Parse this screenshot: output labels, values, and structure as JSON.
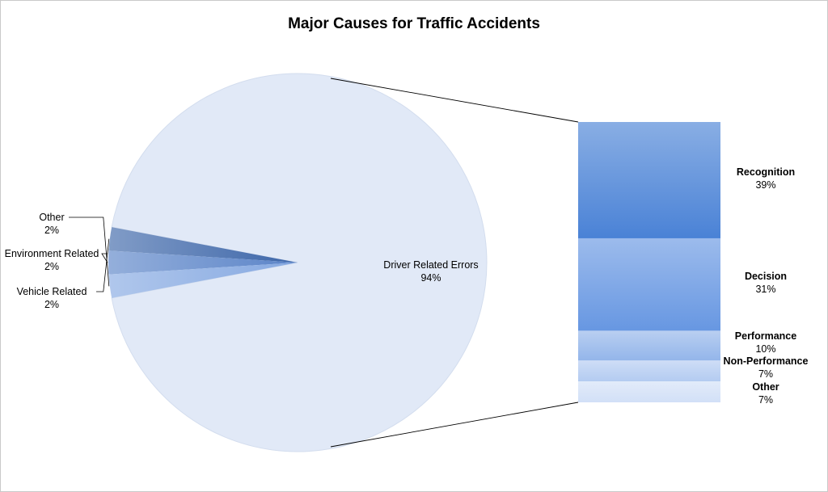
{
  "chart_data": {
    "type": "pie",
    "title": "Major Causes for Traffic Accidents",
    "pie": {
      "slices": [
        {
          "name": "Driver Related Errors",
          "value": 94,
          "label": "94%",
          "color": "#e1e9f7"
        },
        {
          "name": "Vehicle Related",
          "value": 2,
          "label": "2%",
          "color": "#3d66a9"
        },
        {
          "name": "Environment Related",
          "value": 2,
          "label": "2%",
          "color": "#5b84c8"
        },
        {
          "name": "Other",
          "value": 2,
          "label": "2%",
          "color": "#86a9e1"
        }
      ]
    },
    "bar_of_pie": {
      "segments": [
        {
          "name": "Recognition",
          "value": 39,
          "label": "39%",
          "color": "#4a82d6"
        },
        {
          "name": "Decision",
          "value": 31,
          "label": "31%",
          "color": "#6797e2"
        },
        {
          "name": "Performance",
          "value": 10,
          "label": "10%",
          "color": "#93b5ea"
        },
        {
          "name": "Non-Performance",
          "value": 7,
          "label": "7%",
          "color": "#b3cbf1"
        },
        {
          "name": "Other",
          "value": 7,
          "label": "7%",
          "color": "#d2e0f7"
        }
      ]
    }
  }
}
